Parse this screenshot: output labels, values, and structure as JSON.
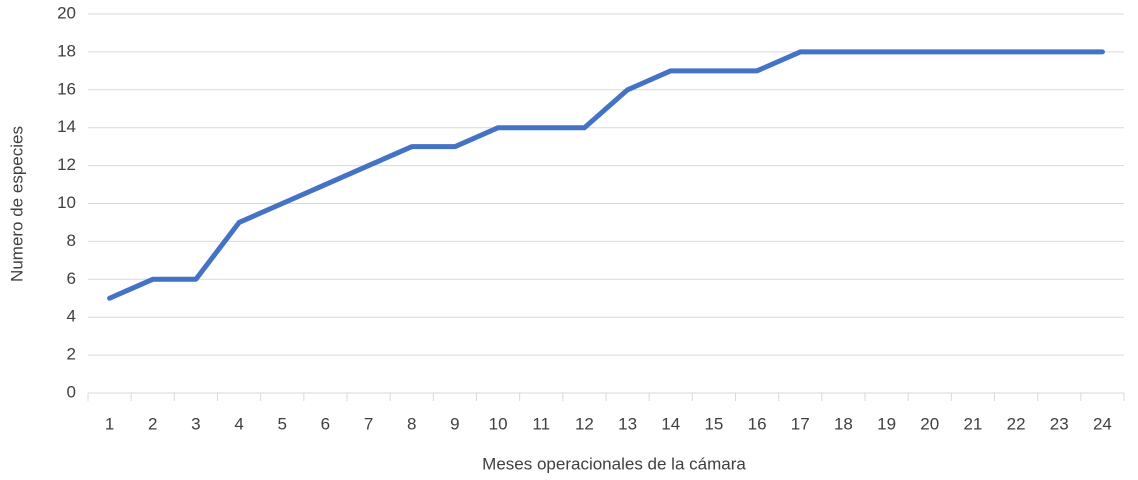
{
  "chart_data": {
    "type": "line",
    "x_label": "Meses operacionales de la cámara",
    "y_label": "Numero de especies",
    "categories": [
      "1",
      "2",
      "3",
      "4",
      "5",
      "6",
      "7",
      "8",
      "9",
      "10",
      "11",
      "12",
      "13",
      "14",
      "15",
      "16",
      "17",
      "18",
      "19",
      "20",
      "21",
      "22",
      "23",
      "24"
    ],
    "series": [
      {
        "name": "Numero de especies",
        "color": "#4472c4",
        "values": [
          5,
          6,
          6,
          9,
          10,
          11,
          12,
          13,
          13,
          14,
          14,
          14,
          16,
          17,
          17,
          17,
          18,
          18,
          18,
          18,
          18,
          18,
          18,
          18
        ]
      }
    ],
    "ylim": [
      0,
      20
    ],
    "yticks": [
      0,
      2,
      4,
      6,
      8,
      10,
      12,
      14,
      16,
      18,
      20
    ],
    "grid": true
  }
}
